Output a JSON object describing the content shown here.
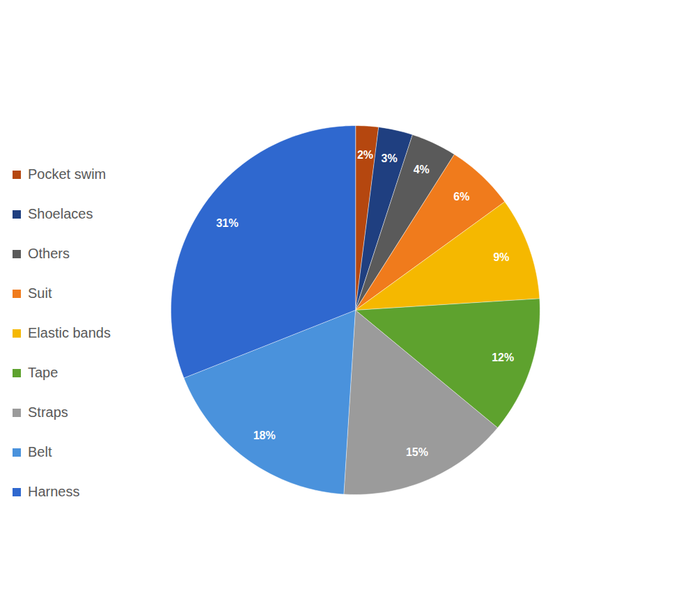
{
  "chart_data": {
    "type": "pie",
    "categories": [
      "Pocket swim",
      "Shoelaces",
      "Others",
      "Suit",
      "Elastic bands",
      "Tape",
      "Straps",
      "Belt",
      "Harness"
    ],
    "values": [
      2,
      3,
      4,
      6,
      9,
      12,
      15,
      18,
      31
    ],
    "value_labels": [
      "2%",
      "3%",
      "4%",
      "6%",
      "9%",
      "12%",
      "15%",
      "18%",
      "31%"
    ],
    "colors": [
      "#b5470f",
      "#1f3f80",
      "#5a5a5a",
      "#f07b1c",
      "#f5b800",
      "#5ea22e",
      "#9b9b9b",
      "#4a92dc",
      "#2f68cf"
    ],
    "data_labels": true,
    "legend": "left"
  }
}
